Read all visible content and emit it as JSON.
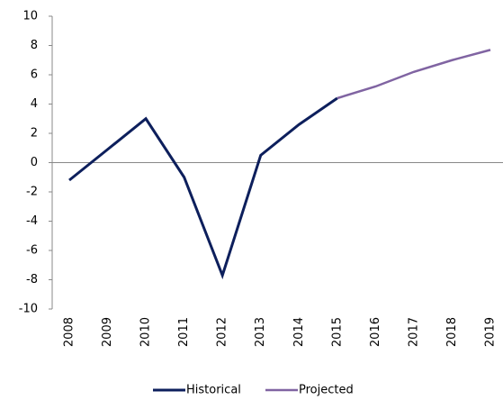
{
  "chart_data": {
    "type": "line",
    "categories": [
      "2008",
      "2009",
      "2010",
      "2011",
      "2012",
      "2013",
      "2014",
      "2015",
      "2016",
      "2017",
      "2018",
      "2019"
    ],
    "series": [
      {
        "name": "Historical",
        "color": "#0d1f5c",
        "values": [
          -1.2,
          0.9,
          3.0,
          -1.0,
          -7.7,
          0.5,
          2.6,
          4.4,
          null,
          null,
          null,
          null
        ]
      },
      {
        "name": "Projected",
        "color": "#8064a2",
        "values": [
          null,
          null,
          null,
          null,
          null,
          null,
          null,
          4.4,
          5.2,
          6.2,
          7.0,
          7.7
        ]
      }
    ],
    "ylim": [
      -10,
      10
    ],
    "yticks": [
      -10,
      -8,
      -6,
      -4,
      -2,
      0,
      2,
      4,
      6,
      8,
      10
    ],
    "grid": false,
    "legend": "bottom"
  }
}
